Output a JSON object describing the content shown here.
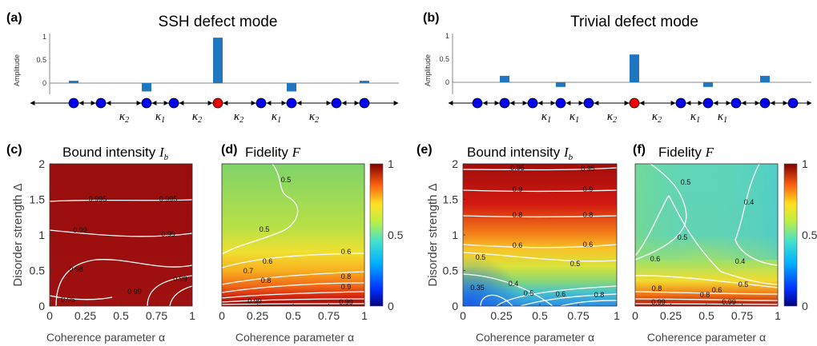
{
  "figure": {
    "panels": {
      "a": {
        "letter": "(a)",
        "title": "SSH defect mode"
      },
      "b": {
        "letter": "(b)",
        "title": "Trivial defect mode"
      },
      "c": {
        "letter": "(c)",
        "title": "Bound intensity",
        "title_var": "I",
        "title_sub": "b"
      },
      "d": {
        "letter": "(d)",
        "title": "Fidelity",
        "title_var": "F"
      },
      "e": {
        "letter": "(e)",
        "title": "Bound intensity",
        "title_var": "I",
        "title_sub": "b"
      },
      "f": {
        "letter": "(f)",
        "title": "Fidelity",
        "title_var": "F"
      }
    },
    "chain_a_labels": [
      "κ2",
      "κ1",
      "κ2",
      "κ2",
      "κ1",
      "κ2"
    ],
    "chain_b_labels": [
      "κ1",
      "κ1",
      "κ2",
      "κ2",
      "κ1",
      "κ1"
    ],
    "colors": {
      "bar": "#1f77c0",
      "site": "#0000ee",
      "defect": "#ee0000",
      "contour": "#ffffff"
    }
  },
  "chart_data": [
    {
      "id": "a",
      "type": "bar",
      "title": "SSH defect mode",
      "ylabel": "Amplitude",
      "xlabel": "",
      "ylim": [
        -0.2,
        1.0
      ],
      "yticks": [
        "0",
        "0.5",
        "1"
      ],
      "values": [
        0.05,
        -0.18,
        0.98,
        -0.18,
        0.05
      ],
      "sites": [
        "site",
        "site",
        "site",
        "site",
        "defect",
        "site",
        "site",
        "site",
        "site"
      ]
    },
    {
      "id": "b",
      "type": "bar",
      "title": "Trivial defect mode",
      "ylabel": "Amplitude",
      "xlabel": "",
      "ylim": [
        -0.2,
        1.0
      ],
      "yticks": [
        "0",
        "0.5",
        "1"
      ],
      "values": [
        0.14,
        -0.1,
        0.6,
        -0.1,
        0.14
      ],
      "sites": [
        "site",
        "site",
        "site",
        "site",
        "site",
        "defect",
        "site",
        "site",
        "site",
        "site",
        "site"
      ]
    },
    {
      "id": "c",
      "type": "heatmap",
      "ylabel": "Disorder strength Δ",
      "xlabel": "Coherence parameter α",
      "xlim": [
        0,
        1
      ],
      "ylim": [
        0,
        2
      ],
      "xticks": [
        "0",
        "0.25",
        "0.5",
        "0.75",
        "1"
      ],
      "yticks": [
        "0",
        "0.5",
        "1",
        "1.5",
        "2"
      ],
      "contour_labels": [
        "0.995",
        "0.995",
        "0.99",
        "0.99",
        "0.98",
        "0.99",
        "0.99",
        "0.95"
      ]
    },
    {
      "id": "d",
      "type": "heatmap",
      "xlabel": "Coherence parameter α",
      "xlim": [
        0,
        1
      ],
      "ylim": [
        0,
        2
      ],
      "xticks": [
        "0",
        "0.25",
        "0.5",
        "0.75",
        "1"
      ],
      "contour_labels": [
        "0.5",
        "0.5",
        "0.6",
        "0.6",
        "0.7",
        "0.8",
        "0.9",
        "0.8",
        "0.99",
        "0.99"
      ],
      "colorbar": {
        "min": 0,
        "max": 1,
        "ticks": [
          "0",
          "0.5",
          "1"
        ]
      }
    },
    {
      "id": "e",
      "type": "heatmap",
      "ylabel": "Disorder strength Δ",
      "xlabel": "Coherence parameter α",
      "xlim": [
        0,
        1
      ],
      "ylim": [
        0,
        2
      ],
      "xticks": [
        "0",
        "0.25",
        "0.5",
        "0.75",
        "1"
      ],
      "yticks": [
        "0",
        "0.5",
        "1",
        "1.5",
        "2"
      ],
      "contour_labels": [
        "0.95",
        "0.95",
        "0.9",
        "0.9",
        "0.8",
        "0.8",
        "0.6",
        "0.6",
        "0.5",
        "0.5",
        "0.4",
        "0.35",
        "0.5",
        "0.6",
        "0.8"
      ]
    },
    {
      "id": "f",
      "type": "heatmap",
      "xlabel": "Coherence parameter α",
      "xlim": [
        0,
        1
      ],
      "ylim": [
        0,
        2
      ],
      "xticks": [
        "0",
        "0.25",
        "0.5",
        "0.75",
        "1"
      ],
      "contour_labels": [
        "0.5",
        "0.4",
        "0.5",
        "0.4",
        "0.6",
        "0.5",
        "0.6",
        "0.8",
        "0.8",
        "0.99",
        "0.99"
      ],
      "colorbar": {
        "min": 0,
        "max": 1,
        "ticks": [
          "0",
          "0.5",
          "1"
        ]
      }
    }
  ]
}
